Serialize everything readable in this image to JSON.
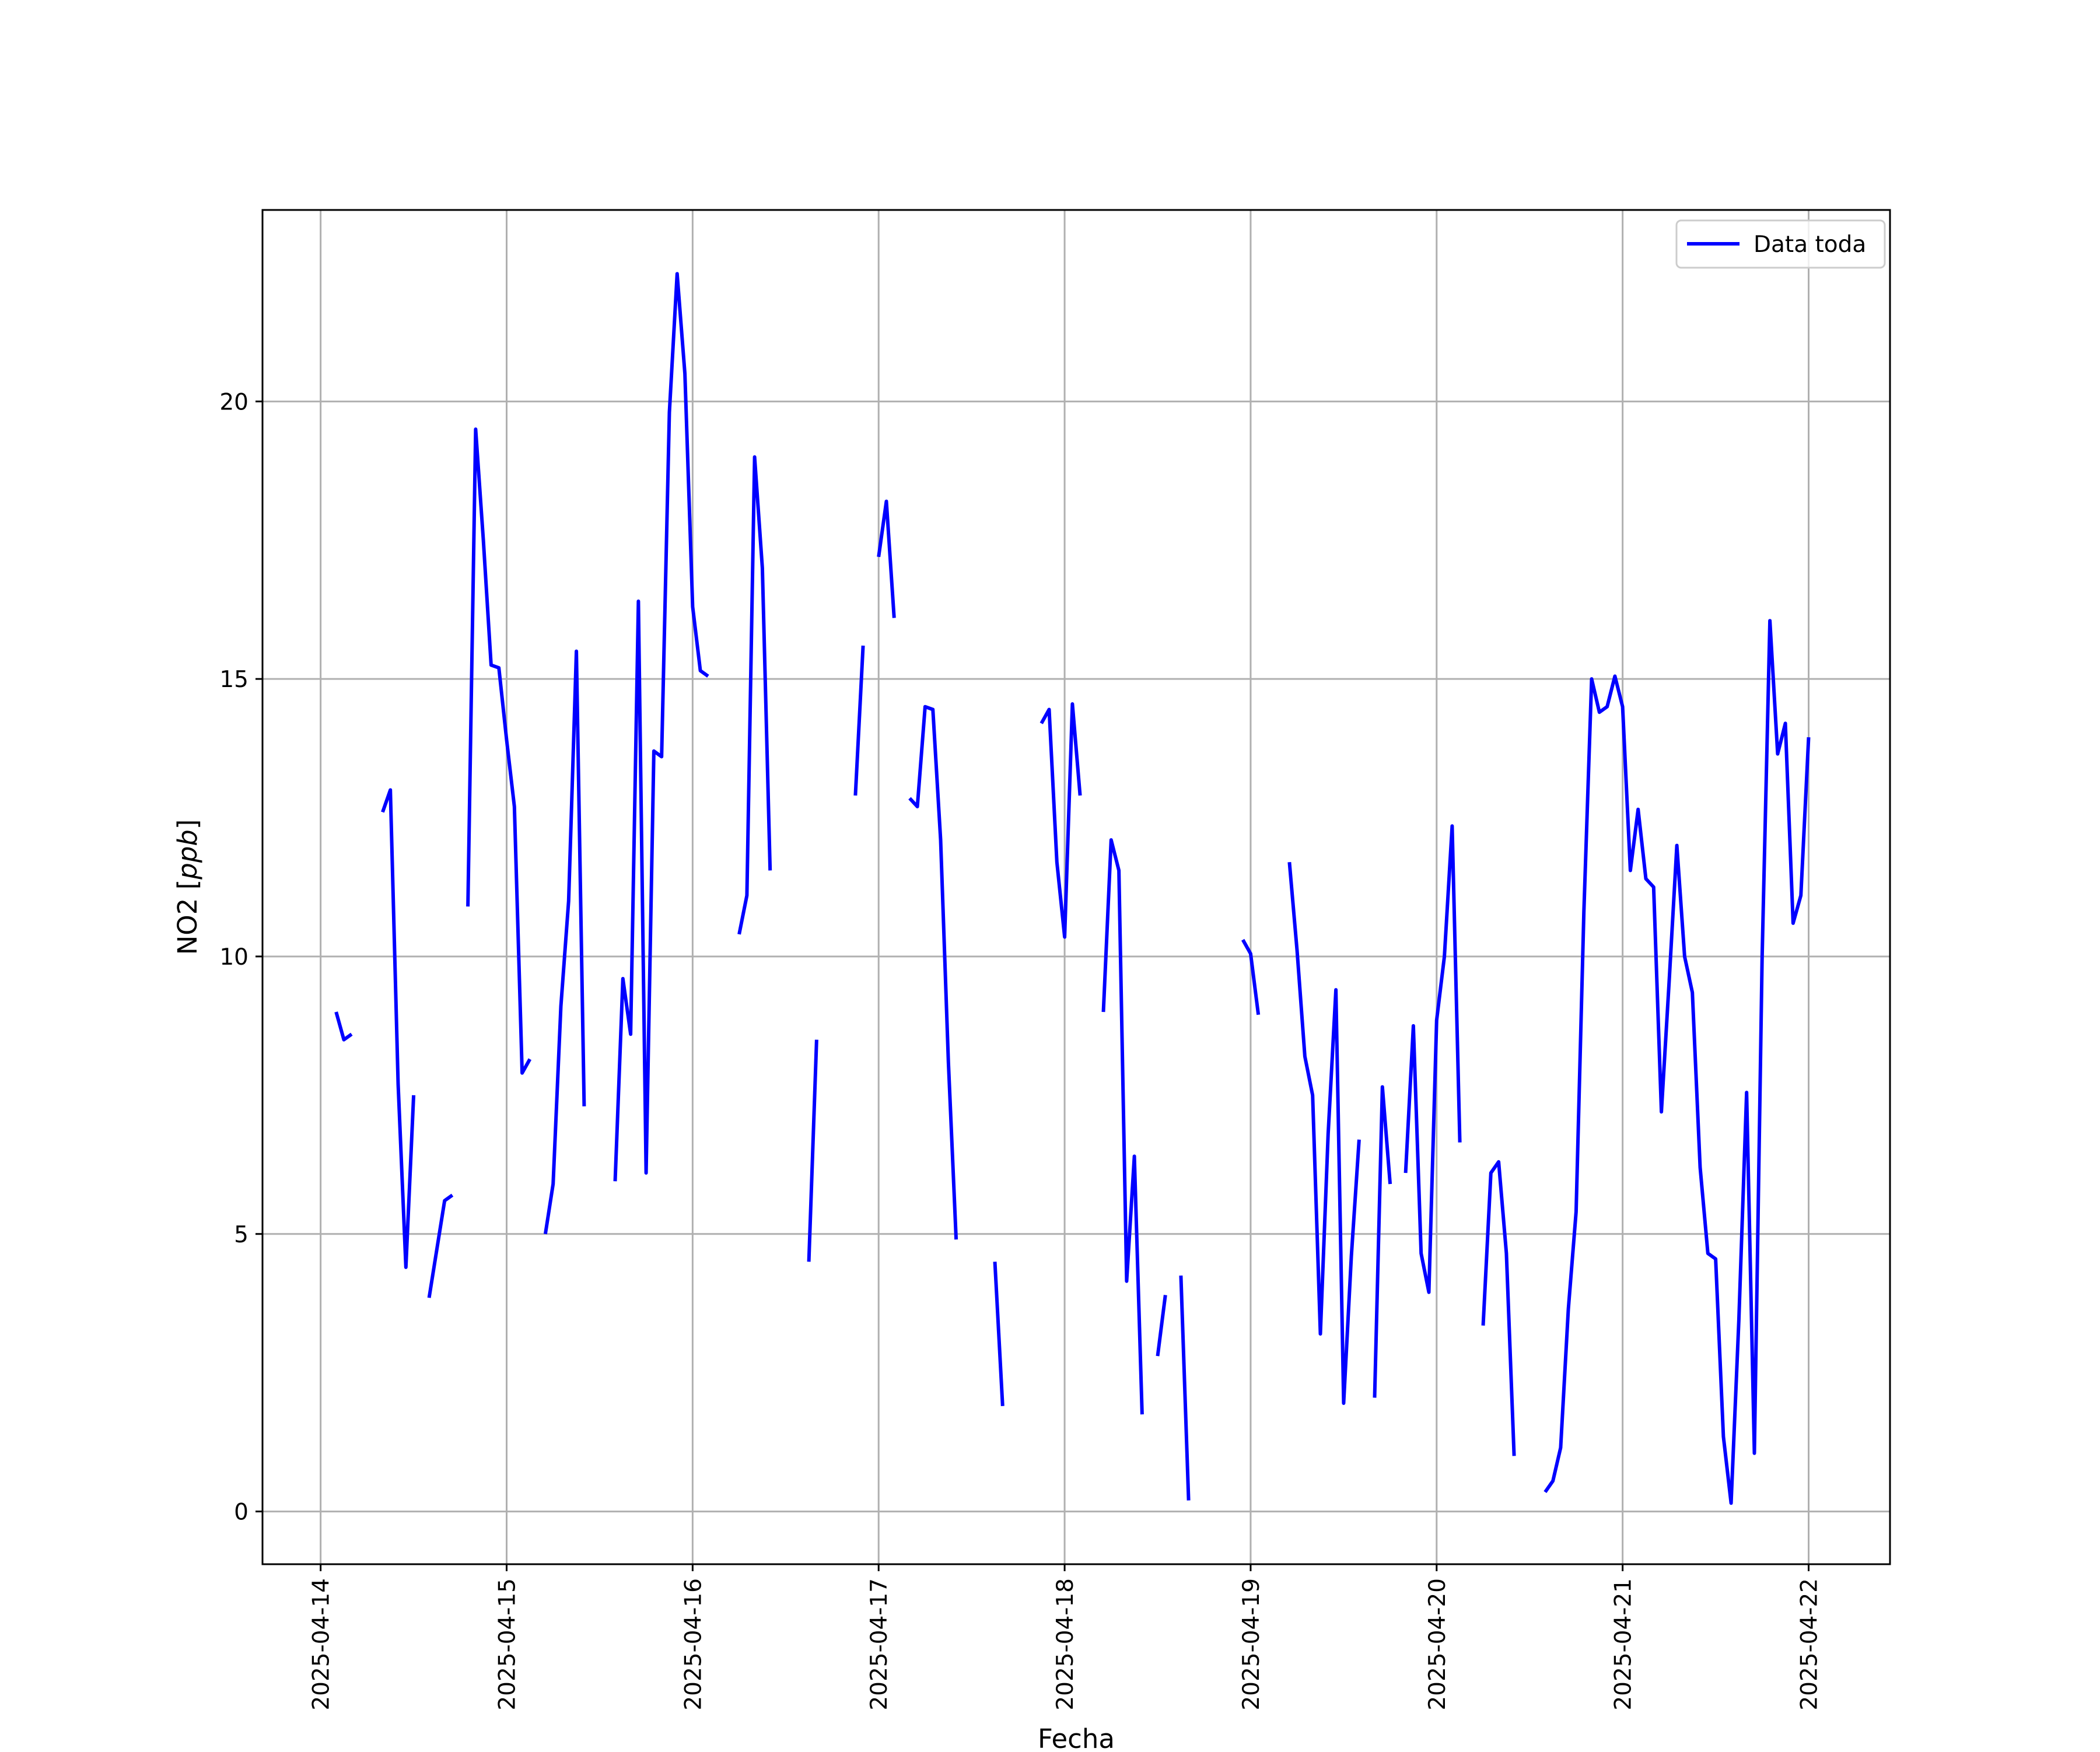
{
  "chart_data": {
    "type": "line",
    "title": "",
    "xlabel": "Fecha",
    "ylabel": "NO2 [ppb]",
    "ylabel_parts": {
      "prefix": "NO2 [",
      "unit": "ppb",
      "suffix": "]"
    },
    "xlim": [
      "2025-04-13T16:30",
      "2025-04-22T10:30"
    ],
    "ylim": [
      -0.95,
      23.45
    ],
    "grid": true,
    "legend_position": "top-right",
    "x_ticks": [
      "2025-04-14",
      "2025-04-15",
      "2025-04-16",
      "2025-04-17",
      "2025-04-18",
      "2025-04-19",
      "2025-04-20",
      "2025-04-21",
      "2025-04-22"
    ],
    "y_ticks": [
      0,
      5,
      10,
      15,
      20
    ],
    "y_tick_labels": [
      "0",
      "5",
      "10",
      "15",
      "20"
    ],
    "series": [
      {
        "name": "Data toda",
        "color": "#0000ff",
        "segments": [
          [
            [
              "2025-04-14T02:00",
              9.0
            ],
            [
              "2025-04-14T03:00",
              8.5
            ],
            [
              "2025-04-14T04:00",
              8.6
            ]
          ],
          [
            [
              "2025-04-14T08:00",
              12.6
            ],
            [
              "2025-04-14T09:00",
              13.0
            ],
            [
              "2025-04-14T10:00",
              7.7
            ],
            [
              "2025-04-14T11:00",
              4.4
            ],
            [
              "2025-04-14T12:00",
              7.5
            ]
          ],
          [
            [
              "2025-04-14T14:00",
              3.85
            ],
            [
              "2025-04-14T16:00",
              5.6
            ],
            [
              "2025-04-14T17:00",
              5.7
            ]
          ],
          [
            [
              "2025-04-14T19:00",
              10.9
            ],
            [
              "2025-04-14T20:00",
              19.5
            ],
            [
              "2025-04-14T21:00",
              17.5
            ],
            [
              "2025-04-14T22:00",
              15.25
            ],
            [
              "2025-04-14T23:00",
              15.2
            ],
            [
              "2025-04-15T00:00",
              13.9
            ],
            [
              "2025-04-15T01:00",
              12.7
            ],
            [
              "2025-04-15T02:00",
              7.9
            ],
            [
              "2025-04-15T03:00",
              8.15
            ]
          ],
          [
            [
              "2025-04-15T05:00",
              5.0
            ],
            [
              "2025-04-15T06:00",
              5.9
            ],
            [
              "2025-04-15T07:00",
              9.1
            ],
            [
              "2025-04-15T08:00",
              11.0
            ],
            [
              "2025-04-15T09:00",
              15.5
            ],
            [
              "2025-04-15T10:00",
              7.3
            ]
          ],
          [
            [
              "2025-04-15T14:00",
              5.95
            ],
            [
              "2025-04-15T15:00",
              9.6
            ],
            [
              "2025-04-15T16:00",
              8.6
            ],
            [
              "2025-04-15T17:00",
              16.4
            ],
            [
              "2025-04-15T18:00",
              6.1
            ],
            [
              "2025-04-15T19:00",
              13.7
            ],
            [
              "2025-04-15T20:00",
              13.6
            ],
            [
              "2025-04-15T21:00",
              19.8
            ],
            [
              "2025-04-15T22:00",
              22.3
            ],
            [
              "2025-04-15T23:00",
              20.5
            ],
            [
              "2025-04-16T00:00",
              16.3
            ],
            [
              "2025-04-16T01:00",
              15.15
            ],
            [
              "2025-04-16T02:00",
              15.05
            ]
          ],
          [
            [
              "2025-04-16T06:00",
              10.4
            ],
            [
              "2025-04-16T07:00",
              11.1
            ],
            [
              "2025-04-16T08:00",
              19.0
            ],
            [
              "2025-04-16T09:00",
              17.0
            ],
            [
              "2025-04-16T10:00",
              11.55
            ]
          ],
          [
            [
              "2025-04-16T15:00",
              4.5
            ],
            [
              "2025-04-16T16:00",
              8.5
            ]
          ],
          [
            [
              "2025-04-16T21:00",
              12.9
            ],
            [
              "2025-04-16T22:00",
              15.6
            ]
          ],
          [
            [
              "2025-04-17T00:00",
              17.2
            ],
            [
              "2025-04-17T01:00",
              18.2
            ],
            [
              "2025-04-17T02:00",
              16.1
            ]
          ],
          [
            [
              "2025-04-17T04:00",
              12.85
            ],
            [
              "2025-04-17T05:00",
              12.7
            ],
            [
              "2025-04-17T06:00",
              14.5
            ],
            [
              "2025-04-17T07:00",
              14.45
            ],
            [
              "2025-04-17T08:00",
              12.1
            ],
            [
              "2025-04-17T09:00",
              8.1
            ],
            [
              "2025-04-17T10:00",
              4.9
            ]
          ],
          [
            [
              "2025-04-17T15:00",
              4.5
            ],
            [
              "2025-04-17T16:00",
              1.9
            ]
          ],
          [
            [
              "2025-04-17T21:00",
              14.2
            ],
            [
              "2025-04-17T22:00",
              14.45
            ],
            [
              "2025-04-17T23:00",
              11.7
            ],
            [
              "2025-04-18T00:00",
              10.35
            ],
            [
              "2025-04-18T01:00",
              14.55
            ],
            [
              "2025-04-18T02:00",
              12.9
            ]
          ],
          [
            [
              "2025-04-18T05:00",
              9.0
            ],
            [
              "2025-04-18T06:00",
              12.1
            ],
            [
              "2025-04-18T07:00",
              11.55
            ],
            [
              "2025-04-18T08:00",
              4.15
            ],
            [
              "2025-04-18T09:00",
              6.4
            ],
            [
              "2025-04-18T10:00",
              1.75
            ]
          ],
          [
            [
              "2025-04-18T12:00",
              2.8
            ],
            [
              "2025-04-18T13:00",
              3.9
            ]
          ],
          [
            [
              "2025-04-18T15:00",
              4.25
            ],
            [
              "2025-04-18T16:00",
              0.2
            ]
          ],
          [
            [
              "2025-04-18T23:00",
              10.3
            ],
            [
              "2025-04-19T00:00",
              10.05
            ],
            [
              "2025-04-19T01:00",
              8.95
            ]
          ],
          [
            [
              "2025-04-19T05:00",
              11.7
            ],
            [
              "2025-04-19T06:00",
              10.1
            ],
            [
              "2025-04-19T07:00",
              8.2
            ],
            [
              "2025-04-19T08:00",
              7.5
            ],
            [
              "2025-04-19T09:00",
              3.2
            ],
            [
              "2025-04-19T10:00",
              6.8
            ],
            [
              "2025-04-19T11:00",
              9.4
            ],
            [
              "2025-04-19T12:00",
              1.95
            ],
            [
              "2025-04-19T13:00",
              4.6
            ],
            [
              "2025-04-19T14:00",
              6.7
            ]
          ],
          [
            [
              "2025-04-19T16:00",
              2.05
            ],
            [
              "2025-04-19T17:00",
              7.65
            ],
            [
              "2025-04-19T18:00",
              5.9
            ]
          ],
          [
            [
              "2025-04-19T20:00",
              6.1
            ],
            [
              "2025-04-19T21:00",
              8.75
            ],
            [
              "2025-04-19T22:00",
              4.65
            ],
            [
              "2025-04-19T23:00",
              3.95
            ],
            [
              "2025-04-20T00:00",
              8.85
            ],
            [
              "2025-04-20T01:00",
              10.0
            ],
            [
              "2025-04-20T02:00",
              12.35
            ],
            [
              "2025-04-20T03:00",
              6.65
            ]
          ],
          [
            [
              "2025-04-20T06:00",
              3.35
            ],
            [
              "2025-04-20T07:00",
              6.1
            ],
            [
              "2025-04-20T08:00",
              6.3
            ],
            [
              "2025-04-20T09:00",
              4.65
            ],
            [
              "2025-04-20T10:00",
              1.0
            ]
          ],
          [
            [
              "2025-04-20T14:00",
              0.35
            ],
            [
              "2025-04-20T15:00",
              0.55
            ],
            [
              "2025-04-20T16:00",
              1.15
            ],
            [
              "2025-04-20T17:00",
              3.65
            ],
            [
              "2025-04-20T18:00",
              5.4
            ],
            [
              "2025-04-20T19:00",
              10.8
            ],
            [
              "2025-04-20T20:00",
              15.0
            ],
            [
              "2025-04-20T21:00",
              14.4
            ],
            [
              "2025-04-20T22:00",
              14.5
            ],
            [
              "2025-04-20T23:00",
              15.05
            ],
            [
              "2025-04-21T00:00",
              14.5
            ],
            [
              "2025-04-21T01:00",
              11.55
            ],
            [
              "2025-04-21T02:00",
              12.65
            ],
            [
              "2025-04-21T03:00",
              11.4
            ],
            [
              "2025-04-21T04:00",
              11.25
            ],
            [
              "2025-04-21T05:00",
              7.2
            ],
            [
              "2025-04-21T06:00",
              9.55
            ],
            [
              "2025-04-21T07:00",
              12.0
            ],
            [
              "2025-04-21T08:00",
              10.0
            ],
            [
              "2025-04-21T09:00",
              9.35
            ],
            [
              "2025-04-21T10:00",
              6.2
            ],
            [
              "2025-04-21T11:00",
              4.65
            ],
            [
              "2025-04-21T12:00",
              4.55
            ],
            [
              "2025-04-21T13:00",
              1.35
            ],
            [
              "2025-04-21T14:00",
              0.15
            ],
            [
              "2025-04-21T15:00",
              3.45
            ],
            [
              "2025-04-21T16:00",
              7.55
            ],
            [
              "2025-04-21T17:00",
              1.05
            ],
            [
              "2025-04-21T18:00",
              10.0
            ],
            [
              "2025-04-21T19:00",
              16.05
            ],
            [
              "2025-04-21T20:00",
              13.65
            ],
            [
              "2025-04-21T21:00",
              14.2
            ],
            [
              "2025-04-21T22:00",
              10.6
            ],
            [
              "2025-04-21T23:00",
              11.1
            ],
            [
              "2025-04-22T00:00",
              13.95
            ]
          ]
        ]
      }
    ]
  }
}
